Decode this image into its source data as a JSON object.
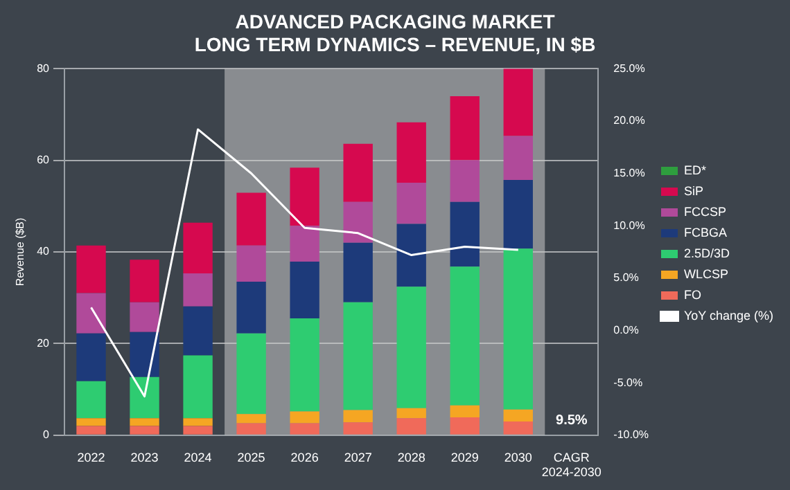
{
  "chart_data": {
    "type": "bar",
    "stacked": true,
    "title": "ADVANCED PACKAGING MARKET\nLONG TERM DYNAMICS – REVENUE, IN $B",
    "ylabel": "Revenue ($B)",
    "categories": [
      "2022",
      "2023",
      "2024",
      "2025",
      "2026",
      "2027",
      "2028",
      "2029",
      "2030",
      "CAGR\n2024-2030"
    ],
    "series": [
      {
        "name": "FO",
        "color": "#f06a5a",
        "values": [
          2,
          2,
          2,
          2.6,
          2.6,
          2.8,
          3.7,
          3.9,
          3,
          null
        ]
      },
      {
        "name": "WLCSP",
        "color": "#f5a623",
        "values": [
          1.7,
          1.7,
          1.7,
          2,
          2.6,
          2.7,
          2.2,
          2.6,
          2.6,
          null
        ]
      },
      {
        "name": "2.5D/3D",
        "color": "#2ecc71",
        "values": [
          8.1,
          9,
          13.7,
          17.6,
          20.3,
          23.5,
          26.5,
          30.3,
          35.1,
          null
        ]
      },
      {
        "name": "FCBGA",
        "color": "#1d3a7a",
        "values": [
          10.4,
          9.8,
          10.7,
          11.3,
          12.4,
          13,
          13.7,
          14.1,
          15,
          null
        ]
      },
      {
        "name": "FCCSP",
        "color": "#b04a9a",
        "values": [
          8.8,
          6.5,
          7.2,
          7.9,
          7.8,
          8.9,
          9,
          9.1,
          9.6,
          null
        ]
      },
      {
        "name": "SiP",
        "color": "#d6094f",
        "values": [
          10.4,
          9.3,
          11.1,
          11.5,
          12.7,
          12.7,
          13.2,
          14,
          14.7,
          null
        ]
      },
      {
        "name": "ED*",
        "color": "#2e9e3e",
        "values": [
          null,
          null,
          null,
          null,
          null,
          null,
          null,
          null,
          null,
          null
        ]
      },
      {
        "name": "YoY change (%)",
        "type": "line",
        "axis": "y2",
        "color": "#ffffff",
        "values": [
          2.2,
          -6.3,
          19.2,
          15,
          9.8,
          9.3,
          7.2,
          8,
          7.7,
          null
        ]
      }
    ],
    "ylim": [
      0,
      80
    ],
    "yticks": [
      0,
      20,
      40,
      60,
      80
    ],
    "y2lim": [
      -10,
      25
    ],
    "y2ticks": [
      {
        "value": -10,
        "label": "-10.0%"
      },
      {
        "value": -5,
        "label": "-5.0%"
      },
      {
        "value": 0,
        "label": "0.0%"
      },
      {
        "value": 5,
        "label": "5.0%"
      },
      {
        "value": 10,
        "label": "10.0%"
      },
      {
        "value": 15,
        "label": "15.0%"
      },
      {
        "value": 20,
        "label": "20.0%"
      },
      {
        "value": 25,
        "label": "25.0%"
      }
    ],
    "bands": [
      {
        "axis": "x",
        "from": "2025",
        "to": "2030",
        "color": "#c8c8c8"
      }
    ],
    "annotations": [
      "9.5%"
    ],
    "grid": "y",
    "legend": "right",
    "marker": "none"
  }
}
